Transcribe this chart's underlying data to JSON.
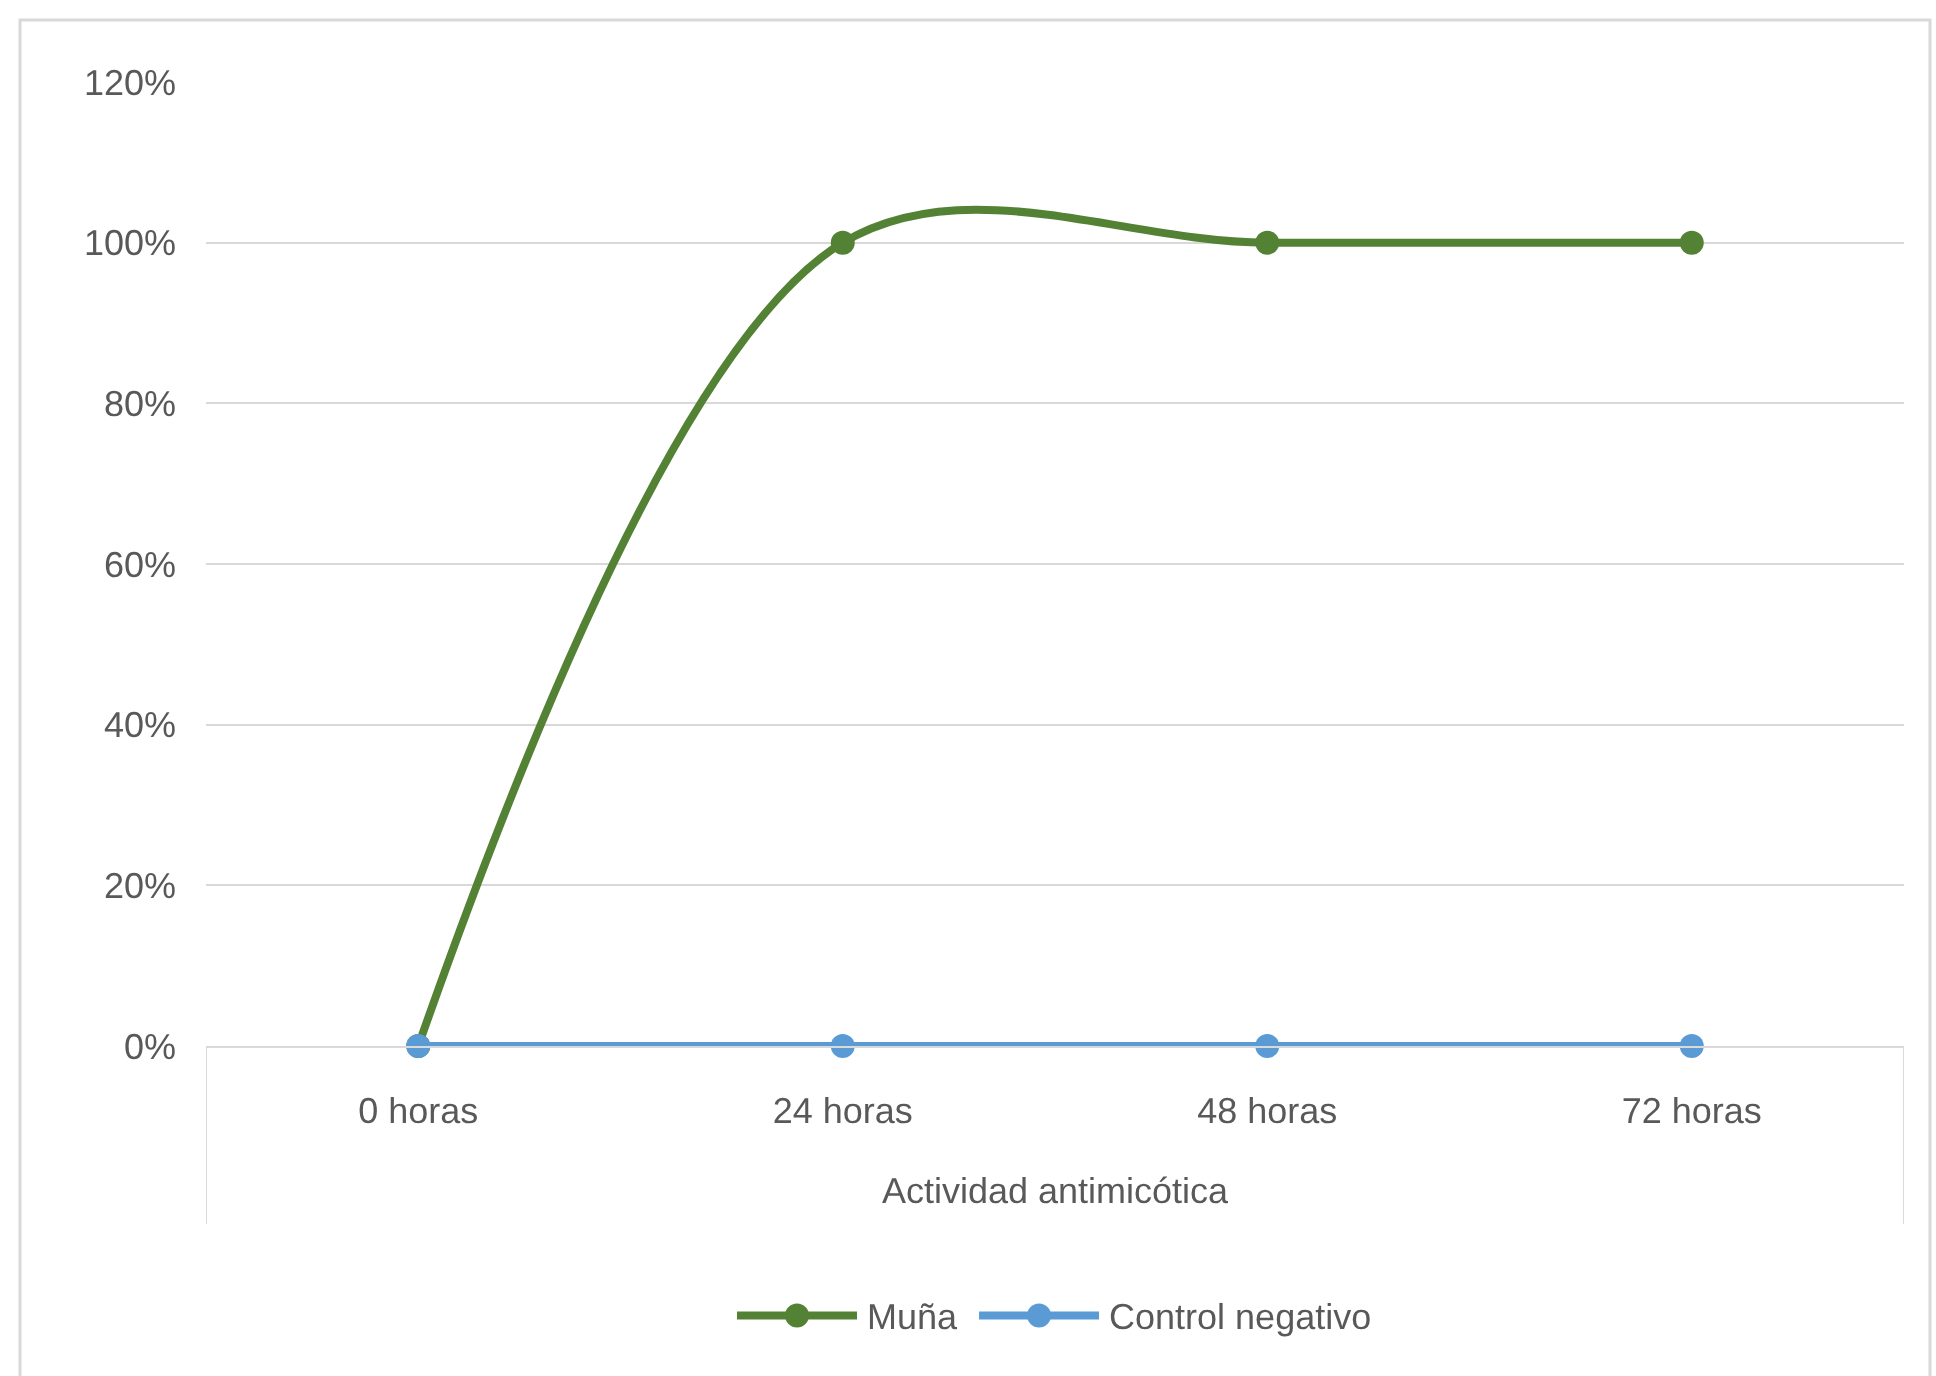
{
  "chart_data": {
    "type": "line",
    "categories": [
      "0 horas",
      "24 horas",
      "48 horas",
      "72 horas"
    ],
    "xlabel": "Actividad antimicótica",
    "series": [
      {
        "name": "Muña",
        "color": "#548235",
        "values": [
          0,
          100,
          100,
          100
        ]
      },
      {
        "name": "Control negativo",
        "color": "#5b9bd5",
        "values": [
          0,
          0,
          0,
          0
        ]
      }
    ],
    "ylim": [
      0,
      120
    ],
    "yticks": [
      {
        "value": 0,
        "label": "0%"
      },
      {
        "value": 20,
        "label": "20%"
      },
      {
        "value": 40,
        "label": "40%"
      },
      {
        "value": 60,
        "label": "60%"
      },
      {
        "value": 80,
        "label": "80%"
      },
      {
        "value": 100,
        "label": "100%"
      },
      {
        "value": 120,
        "label": "120%"
      }
    ],
    "grid": "y",
    "legend": "bottom",
    "marker": "circle",
    "line_style": "solid"
  }
}
